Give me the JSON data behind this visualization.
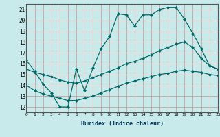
{
  "xlabel": "Humidex (Indice chaleur)",
  "xlim": [
    0,
    23
  ],
  "ylim": [
    11.5,
    21.5
  ],
  "yticks": [
    12,
    13,
    14,
    15,
    16,
    17,
    18,
    19,
    20,
    21
  ],
  "xticks": [
    0,
    1,
    2,
    3,
    4,
    5,
    6,
    7,
    8,
    9,
    10,
    11,
    12,
    13,
    14,
    15,
    16,
    17,
    18,
    19,
    20,
    21,
    22,
    23
  ],
  "background_color": "#c8eaea",
  "grid_color": "#c8a0a0",
  "line_color": "#006868",
  "line1_x": [
    0,
    1,
    2,
    3,
    4,
    5,
    6,
    7,
    8,
    9,
    10,
    11,
    12,
    13,
    14,
    15,
    16,
    17,
    18,
    19,
    20,
    21,
    22,
    23
  ],
  "line1_y": [
    16.3,
    15.3,
    14.1,
    13.3,
    12.0,
    12.0,
    15.5,
    13.5,
    15.6,
    17.4,
    18.5,
    20.6,
    20.5,
    19.5,
    20.5,
    20.5,
    21.0,
    21.2,
    21.2,
    20.1,
    18.8,
    17.4,
    15.8,
    15.5
  ],
  "line2_x": [
    0,
    1,
    2,
    3,
    4,
    5,
    6,
    7,
    8,
    9,
    10,
    11,
    12,
    13,
    14,
    15,
    16,
    17,
    18,
    19,
    20,
    21,
    22,
    23
  ],
  "line2_y": [
    15.5,
    15.2,
    15.0,
    14.8,
    14.5,
    14.3,
    14.2,
    14.4,
    14.7,
    15.0,
    15.3,
    15.6,
    16.0,
    16.2,
    16.5,
    16.8,
    17.2,
    17.5,
    17.8,
    18.0,
    17.5,
    16.5,
    15.8,
    15.5
  ],
  "line3_x": [
    0,
    1,
    2,
    3,
    4,
    5,
    6,
    7,
    8,
    9,
    10,
    11,
    12,
    13,
    14,
    15,
    16,
    17,
    18,
    19,
    20,
    21,
    22,
    23
  ],
  "line3_y": [
    14.0,
    13.5,
    13.2,
    13.0,
    12.8,
    12.6,
    12.6,
    12.8,
    13.0,
    13.3,
    13.6,
    13.9,
    14.2,
    14.4,
    14.6,
    14.8,
    15.0,
    15.1,
    15.3,
    15.4,
    15.3,
    15.2,
    15.0,
    14.9
  ]
}
